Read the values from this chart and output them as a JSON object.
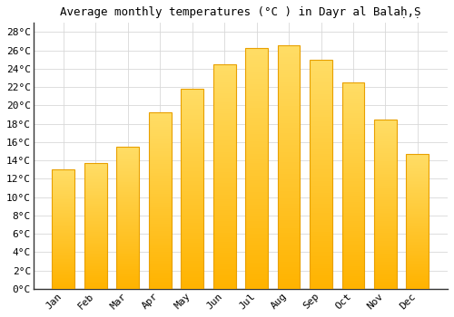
{
  "title": "Average monthly temperatures (°C ) in Dayr al Balaḥ,Ṣ",
  "months": [
    "Jan",
    "Feb",
    "Mar",
    "Apr",
    "May",
    "Jun",
    "Jul",
    "Aug",
    "Sep",
    "Oct",
    "Nov",
    "Dec"
  ],
  "values": [
    13.0,
    13.7,
    15.5,
    19.2,
    21.8,
    24.5,
    26.3,
    26.6,
    25.0,
    22.5,
    18.5,
    14.7
  ],
  "bar_color_bottom": "#FFB300",
  "bar_color_top": "#FFD966",
  "bar_edge_color": "#E8A000",
  "background_color": "#ffffff",
  "grid_color": "#d8d8d8",
  "ytick_labels": [
    "0°C",
    "2°C",
    "4°C",
    "6°C",
    "8°C",
    "10°C",
    "12°C",
    "14°C",
    "16°C",
    "18°C",
    "20°C",
    "22°C",
    "24°C",
    "26°C",
    "28°C"
  ],
  "ytick_values": [
    0,
    2,
    4,
    6,
    8,
    10,
    12,
    14,
    16,
    18,
    20,
    22,
    24,
    26,
    28
  ],
  "ylim": [
    0,
    29
  ],
  "title_fontsize": 9,
  "tick_fontsize": 8,
  "font_family": "monospace"
}
